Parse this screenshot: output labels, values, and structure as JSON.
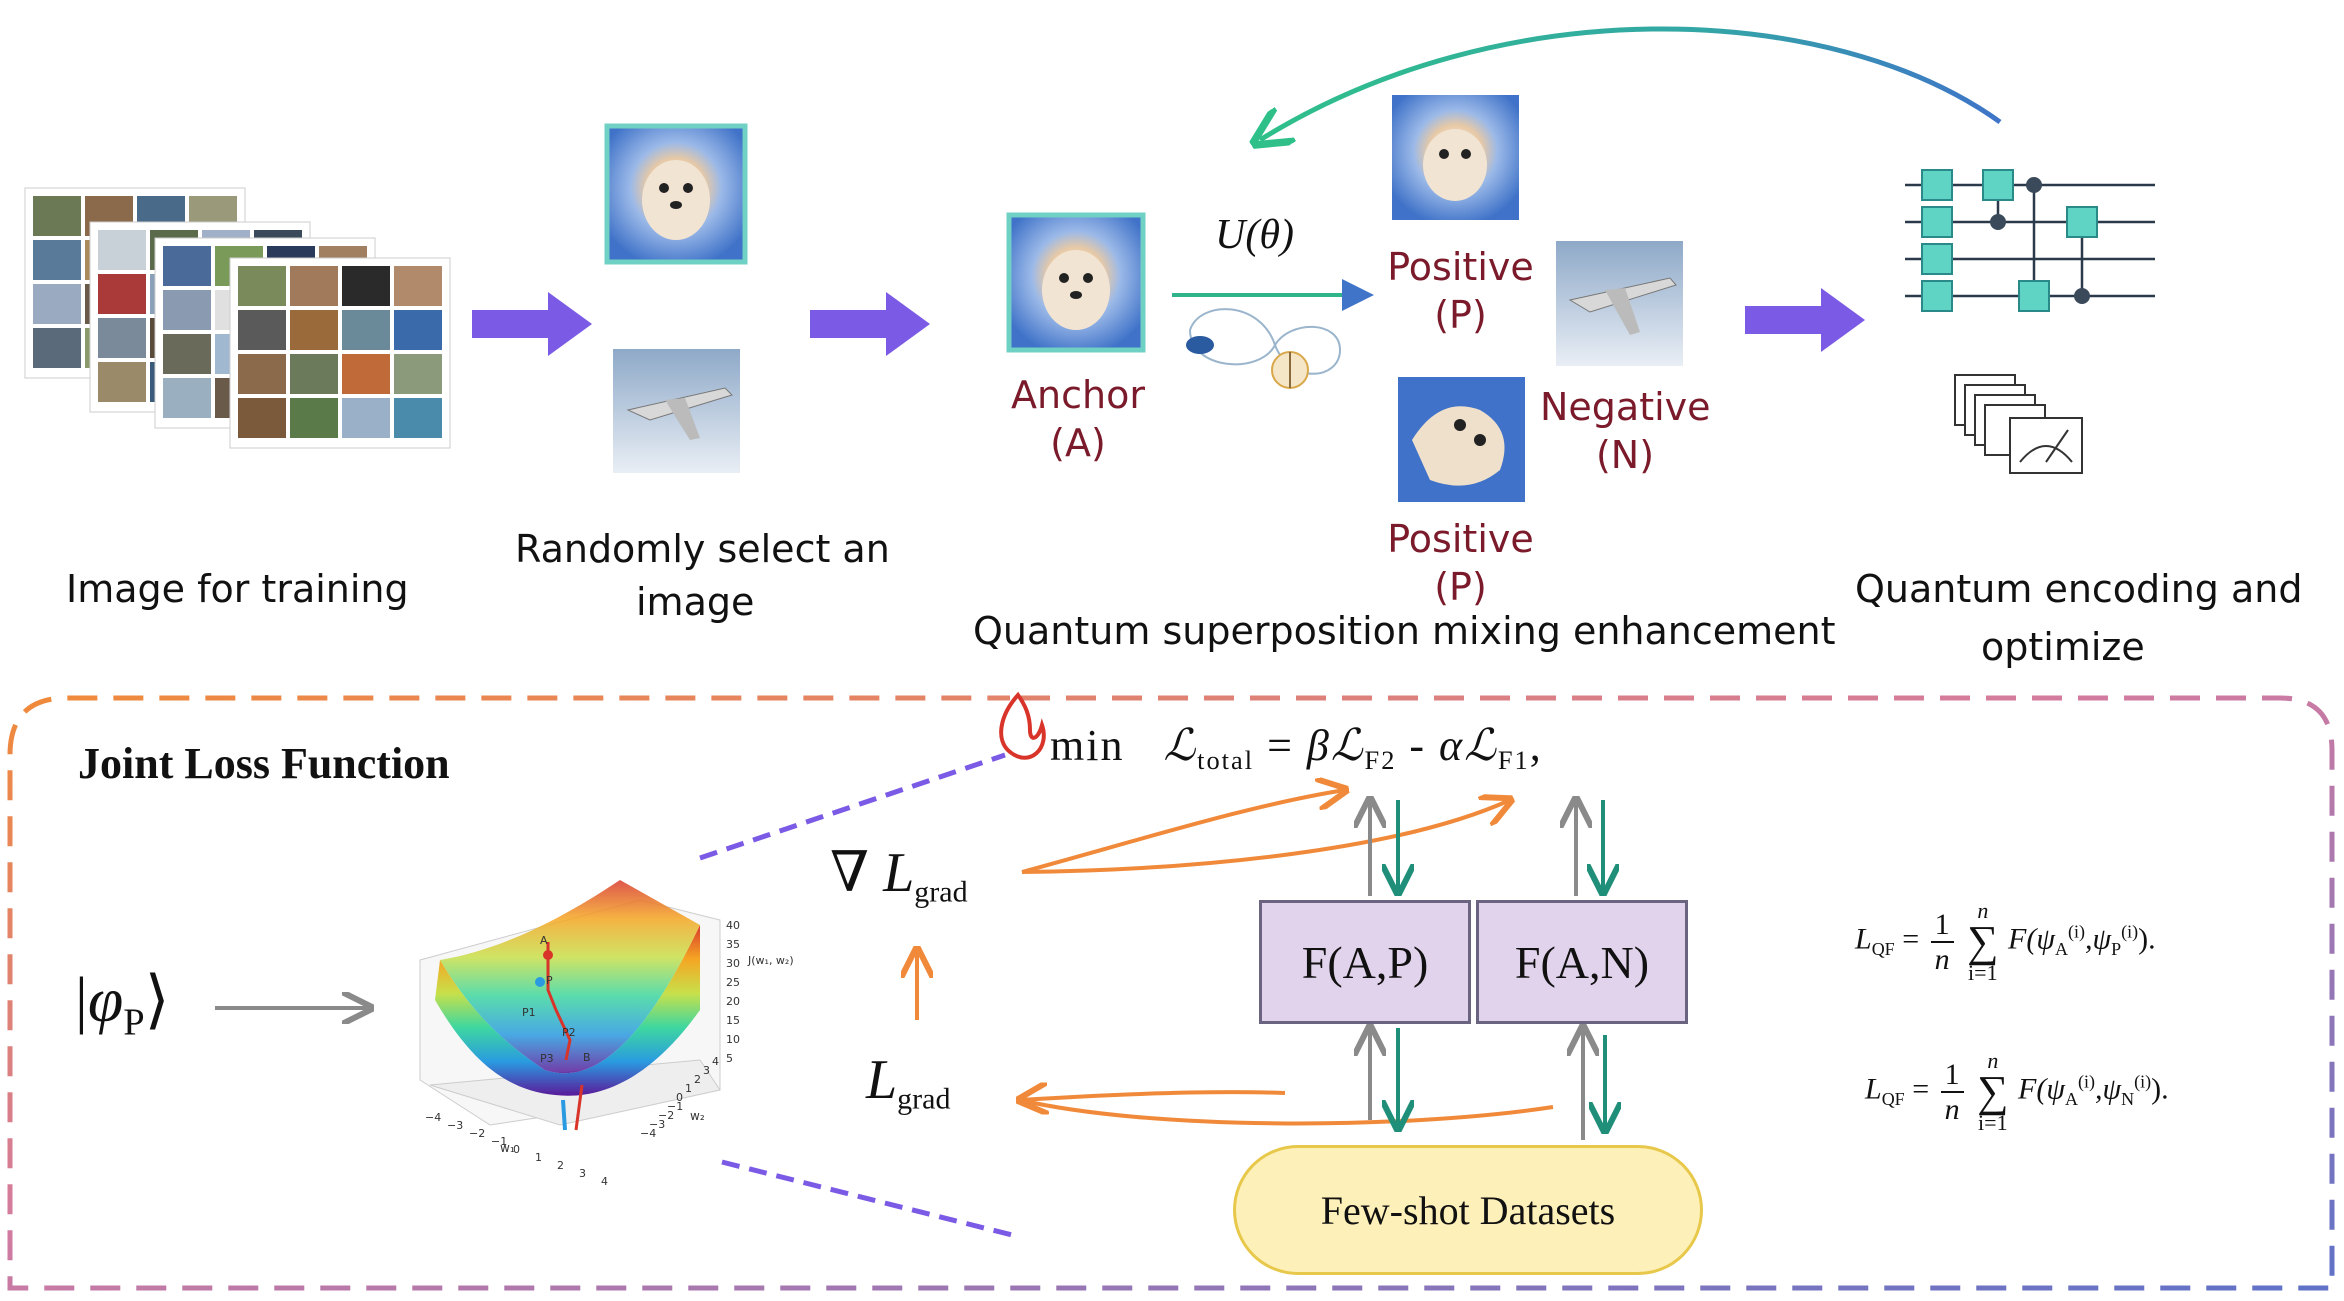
{
  "top": {
    "stage1_label": "Image for training",
    "stage2_label_line1": "Randomly select an",
    "stage2_label_line2": "image",
    "stage3_label": "Quantum superposition mixing enhancement",
    "stage4_label_line1": "Quantum encoding and",
    "stage4_label_line2": "optimize",
    "operator_label": "U(θ)",
    "anchor_line1": "Anchor",
    "anchor_line2": "(A)",
    "positive1_line1": "Positive",
    "positive1_line2": "(P)",
    "negative_line1": "Negative",
    "negative_line2": "(N)",
    "positive2_line1": "Positive",
    "positive2_line2": "(P)"
  },
  "bottom": {
    "panel_title": "Joint Loss Function",
    "state_ket_symbol": "φ",
    "state_ket_sub": "P",
    "loss_min": "min",
    "loss_total_symbol": "ℒ",
    "loss_total_sub": "total",
    "loss_eq": "=",
    "beta": "β",
    "loss_f2_symbol": "ℒ",
    "loss_f2_sub": "F2",
    "minus": "-",
    "alpha": "α",
    "loss_f1_symbol": "ℒ",
    "loss_f1_sub": "F1",
    "trailing_comma": ",",
    "nabla": "∇",
    "grad_symbol": "L",
    "grad_sub": "grad",
    "lgrad_symbol": "L",
    "lgrad_sub": "grad",
    "box_ap": "F(A,P)",
    "box_an": "F(A,N)",
    "datasets": "Few-shot Datasets",
    "eq1": {
      "lhs": "L",
      "lhs_sub": "QF",
      "eq": "=",
      "num": "1",
      "den": "n",
      "sum_top": "n",
      "sum_bot": "i=1",
      "body": "F(ψ",
      "a_sub": "A",
      "sup_i": "(i)",
      "mid": ",ψ",
      "b_sub": "P",
      "sup_i2": "(i)",
      "end": ")."
    },
    "eq2": {
      "lhs": "L",
      "lhs_sub": "QF",
      "eq": "=",
      "num": "1",
      "den": "n",
      "sum_top": "n",
      "sum_bot": "i=1",
      "body": "F(ψ",
      "a_sub": "A",
      "sup_i": "(i)",
      "mid": ",ψ",
      "b_sub": "N",
      "sup_i2": "(i)",
      "end": ")."
    }
  },
  "plot": {
    "x_ticks": [
      "−4",
      "−3",
      "−2",
      "−1",
      "0",
      "1",
      "2",
      "3",
      "4"
    ],
    "y_ticks": [
      "−4",
      "−3",
      "−2",
      "−1",
      "0",
      "1",
      "2",
      "3",
      "4"
    ],
    "z_ticks": [
      "40",
      "35",
      "30",
      "25",
      "20",
      "15",
      "10",
      "5"
    ],
    "x_axis_label": "w₁",
    "y_axis_label": "w₂",
    "z_axis_label": "J(w₁, w₂)",
    "point_labels": [
      "A",
      "P",
      "P1",
      "P2",
      "P3",
      "B"
    ]
  },
  "colors": {
    "block_arrow": "#7b5be6",
    "orange": "#f08a3a",
    "teal": "#1f8f7a",
    "gray": "#8a8a8a",
    "dark_red": "#7a1a2a",
    "box_fill": "#e2d3ec",
    "pill_fill": "#fdf0b8",
    "qubit_gate": "#5fd4c4"
  }
}
